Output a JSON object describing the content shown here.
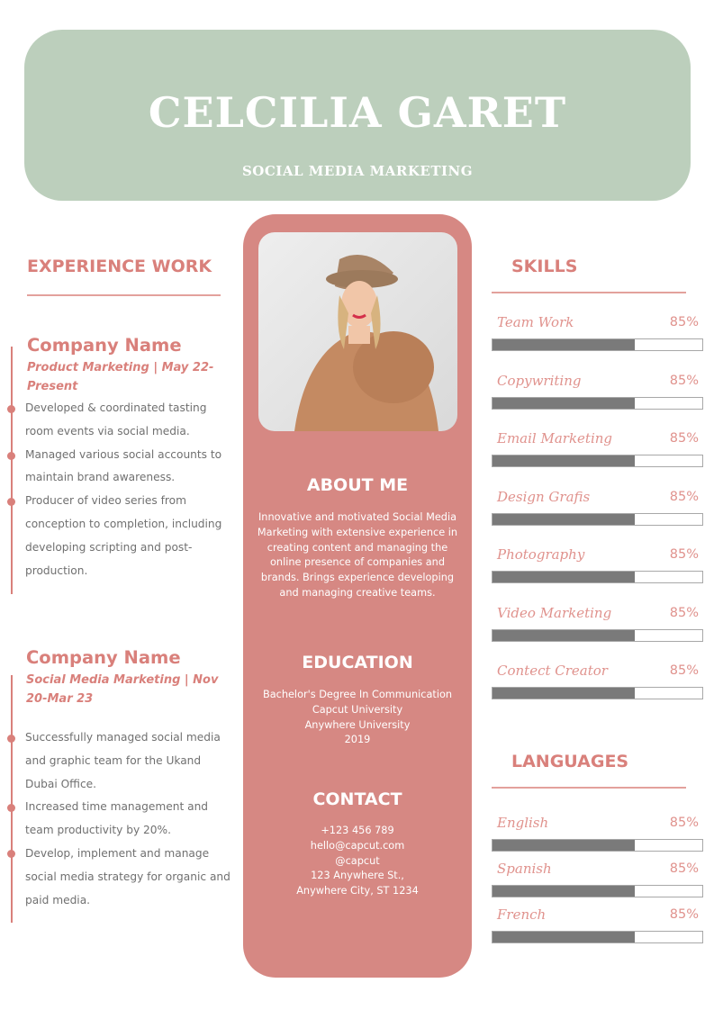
{
  "header": {
    "name": "CELCILIA GARET",
    "role": "SOCIAL MEDIA MARKETING"
  },
  "colors": {
    "header_bg": "#bccfbc",
    "accent": "#d68883",
    "bar_fill": "#7a7a7a"
  },
  "photo": {
    "icon": "profile-photo"
  },
  "about": {
    "title": "ABOUT ME",
    "text": "Innovative and motivated Social Media Marketing with extensive experience in creating content and managing the online presence of companies and brands. Brings experience developing and managing creative teams."
  },
  "education": {
    "title": "EDUCATION",
    "lines": [
      "Bachelor's Degree In Communication",
      "Capcut University",
      "Anywhere University",
      "2019"
    ]
  },
  "contact": {
    "title": "CONTACT",
    "lines": [
      "+123  456 789",
      "hello@capcut.com",
      "@capcut",
      "123 Anywhere St.,",
      "Anywhere City, ST 1234"
    ]
  },
  "experience": {
    "title": "EXPERIENCE WORK",
    "jobs": [
      {
        "company": "Company Name",
        "subtitle": "Product Marketing | May 22-Present",
        "bullets": [
          "Developed & coordinated tasting room events via social media.",
          "Managed various social accounts to maintain brand awareness.",
          "Producer of video series from conception to completion, including developing scripting and post-production."
        ]
      },
      {
        "company": "Company Name",
        "subtitle": "Social Media Marketing | Nov 20-Mar 23",
        "bullets": [
          "Successfully managed social media and graphic team for the Ukand Dubai Office.",
          "Increased time management and team productivity by 20%.",
          "Develop, implement and manage social media strategy for organic and  paid media."
        ]
      }
    ]
  },
  "skills": {
    "title": "SKILLS",
    "items": [
      {
        "label": "Team Work",
        "percent": "85%",
        "fill": 0.68
      },
      {
        "label": "Copywriting",
        "percent": "85%",
        "fill": 0.68
      },
      {
        "label": "Email Marketing",
        "percent": "85%",
        "fill": 0.68
      },
      {
        "label": "Design Grafis",
        "percent": "85%",
        "fill": 0.68
      },
      {
        "label": "Photography",
        "percent": "85%",
        "fill": 0.68
      },
      {
        "label": "Video Marketing",
        "percent": "85%",
        "fill": 0.68
      },
      {
        "label": "Contect Creator",
        "percent": "85%",
        "fill": 0.68
      }
    ]
  },
  "languages": {
    "title": "LANGUAGES",
    "items": [
      {
        "label": "English",
        "percent": "85%",
        "fill": 0.68
      },
      {
        "label": "Spanish",
        "percent": "85%",
        "fill": 0.68
      },
      {
        "label": "French",
        "percent": "85%",
        "fill": 0.68
      }
    ]
  }
}
